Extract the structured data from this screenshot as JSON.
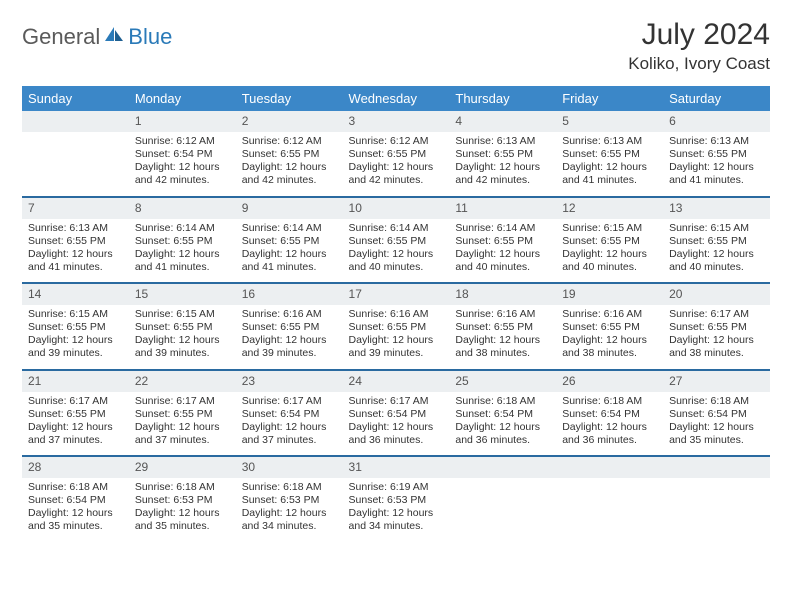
{
  "logo": {
    "text_gray": "General",
    "text_blue": "Blue"
  },
  "title": "July 2024",
  "location": "Koliko, Ivory Coast",
  "weekday_headers": [
    "Sunday",
    "Monday",
    "Tuesday",
    "Wednesday",
    "Thursday",
    "Friday",
    "Saturday"
  ],
  "colors": {
    "header_bg": "#3b87c8",
    "header_text": "#ffffff",
    "daynum_bg": "#eceff1",
    "week_sep": "#2a6aa0",
    "body_text": "#333333",
    "logo_gray": "#5a5a5a",
    "logo_blue": "#2a7ab8",
    "page_bg": "#ffffff"
  },
  "fonts": {
    "title_size_pt": 30,
    "location_size_pt": 17,
    "weekday_size_pt": 13,
    "daynum_size_pt": 12,
    "body_size_pt": 10.5,
    "logo_size_pt": 22
  },
  "layout": {
    "columns": 7,
    "rows": 5,
    "first_weekday_index": 1,
    "days_in_month": 31
  },
  "days": {
    "1": {
      "sunrise": "6:12 AM",
      "sunset": "6:54 PM",
      "daylight": "12 hours and 42 minutes."
    },
    "2": {
      "sunrise": "6:12 AM",
      "sunset": "6:55 PM",
      "daylight": "12 hours and 42 minutes."
    },
    "3": {
      "sunrise": "6:12 AM",
      "sunset": "6:55 PM",
      "daylight": "12 hours and 42 minutes."
    },
    "4": {
      "sunrise": "6:13 AM",
      "sunset": "6:55 PM",
      "daylight": "12 hours and 42 minutes."
    },
    "5": {
      "sunrise": "6:13 AM",
      "sunset": "6:55 PM",
      "daylight": "12 hours and 41 minutes."
    },
    "6": {
      "sunrise": "6:13 AM",
      "sunset": "6:55 PM",
      "daylight": "12 hours and 41 minutes."
    },
    "7": {
      "sunrise": "6:13 AM",
      "sunset": "6:55 PM",
      "daylight": "12 hours and 41 minutes."
    },
    "8": {
      "sunrise": "6:14 AM",
      "sunset": "6:55 PM",
      "daylight": "12 hours and 41 minutes."
    },
    "9": {
      "sunrise": "6:14 AM",
      "sunset": "6:55 PM",
      "daylight": "12 hours and 41 minutes."
    },
    "10": {
      "sunrise": "6:14 AM",
      "sunset": "6:55 PM",
      "daylight": "12 hours and 40 minutes."
    },
    "11": {
      "sunrise": "6:14 AM",
      "sunset": "6:55 PM",
      "daylight": "12 hours and 40 minutes."
    },
    "12": {
      "sunrise": "6:15 AM",
      "sunset": "6:55 PM",
      "daylight": "12 hours and 40 minutes."
    },
    "13": {
      "sunrise": "6:15 AM",
      "sunset": "6:55 PM",
      "daylight": "12 hours and 40 minutes."
    },
    "14": {
      "sunrise": "6:15 AM",
      "sunset": "6:55 PM",
      "daylight": "12 hours and 39 minutes."
    },
    "15": {
      "sunrise": "6:15 AM",
      "sunset": "6:55 PM",
      "daylight": "12 hours and 39 minutes."
    },
    "16": {
      "sunrise": "6:16 AM",
      "sunset": "6:55 PM",
      "daylight": "12 hours and 39 minutes."
    },
    "17": {
      "sunrise": "6:16 AM",
      "sunset": "6:55 PM",
      "daylight": "12 hours and 39 minutes."
    },
    "18": {
      "sunrise": "6:16 AM",
      "sunset": "6:55 PM",
      "daylight": "12 hours and 38 minutes."
    },
    "19": {
      "sunrise": "6:16 AM",
      "sunset": "6:55 PM",
      "daylight": "12 hours and 38 minutes."
    },
    "20": {
      "sunrise": "6:17 AM",
      "sunset": "6:55 PM",
      "daylight": "12 hours and 38 minutes."
    },
    "21": {
      "sunrise": "6:17 AM",
      "sunset": "6:55 PM",
      "daylight": "12 hours and 37 minutes."
    },
    "22": {
      "sunrise": "6:17 AM",
      "sunset": "6:55 PM",
      "daylight": "12 hours and 37 minutes."
    },
    "23": {
      "sunrise": "6:17 AM",
      "sunset": "6:54 PM",
      "daylight": "12 hours and 37 minutes."
    },
    "24": {
      "sunrise": "6:17 AM",
      "sunset": "6:54 PM",
      "daylight": "12 hours and 36 minutes."
    },
    "25": {
      "sunrise": "6:18 AM",
      "sunset": "6:54 PM",
      "daylight": "12 hours and 36 minutes."
    },
    "26": {
      "sunrise": "6:18 AM",
      "sunset": "6:54 PM",
      "daylight": "12 hours and 36 minutes."
    },
    "27": {
      "sunrise": "6:18 AM",
      "sunset": "6:54 PM",
      "daylight": "12 hours and 35 minutes."
    },
    "28": {
      "sunrise": "6:18 AM",
      "sunset": "6:54 PM",
      "daylight": "12 hours and 35 minutes."
    },
    "29": {
      "sunrise": "6:18 AM",
      "sunset": "6:53 PM",
      "daylight": "12 hours and 35 minutes."
    },
    "30": {
      "sunrise": "6:18 AM",
      "sunset": "6:53 PM",
      "daylight": "12 hours and 34 minutes."
    },
    "31": {
      "sunrise": "6:19 AM",
      "sunset": "6:53 PM",
      "daylight": "12 hours and 34 minutes."
    }
  },
  "labels": {
    "sunrise_prefix": "Sunrise: ",
    "sunset_prefix": "Sunset: ",
    "daylight_prefix": "Daylight: "
  }
}
